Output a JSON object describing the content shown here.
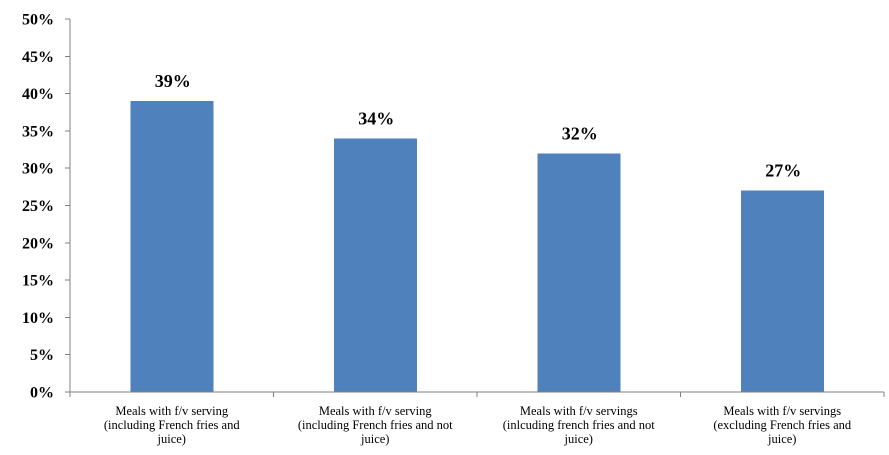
{
  "chart_data": {
    "type": "bar",
    "title": "",
    "xlabel": "",
    "ylabel": "",
    "ylim": [
      0,
      50
    ],
    "yticks": [
      "0%",
      "5%",
      "10%",
      "15%",
      "20%",
      "25%",
      "30%",
      "35%",
      "40%",
      "45%",
      "50%"
    ],
    "grid": false,
    "legend": "none",
    "bar_color": "#4F81BD",
    "categories": [
      [
        "Meals with f/v serving",
        "(including French fries and",
        "juice)"
      ],
      [
        "Meals with f/v serving",
        "(including French fries and not",
        "juice)"
      ],
      [
        "Meals with f/v servings",
        "(inlcuding french fries and not",
        "juice)"
      ],
      [
        "Meals with f/v servings",
        "(excluding French fries and",
        "juice)"
      ]
    ],
    "values": [
      39,
      34,
      32,
      27
    ],
    "data_labels": [
      "39%",
      "34%",
      "32%",
      "27%"
    ]
  }
}
